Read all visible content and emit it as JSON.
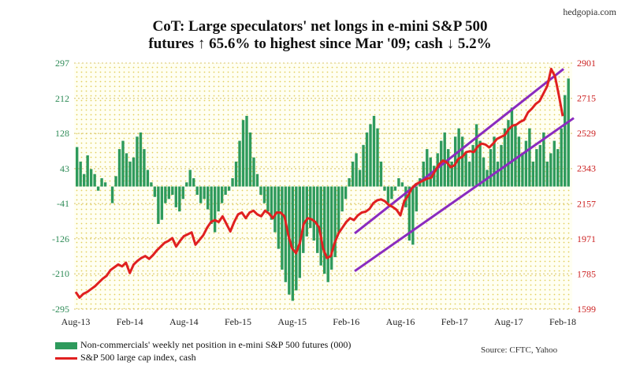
{
  "header": {
    "title_line1": "CoT: Large speculators' net longs in e-mini S&P 500",
    "title_line2": "futures ↑ 65.6% to highest since Mar '09; cash ↓ 5.2%",
    "watermark": "hedgopia.com"
  },
  "legend": {
    "bars_label": "Non-commercials' weekly net position in e-mini S&P 500 futures (000)",
    "line_label": "S&P 500 large cap index, cash"
  },
  "source": "Source: CFTC, Yahoo",
  "colors": {
    "bars": "#2e9a5c",
    "line": "#e02020",
    "channel": "#8a2bbf",
    "left_axis": "#2e8b57",
    "right_axis": "#cc2222",
    "plot_bg": "#fffff0",
    "grid_dots": "#e6d46a"
  },
  "chart_data": {
    "type": "bar+line",
    "x_tick_labels": [
      "Aug-13",
      "Feb-14",
      "Aug-14",
      "Feb-15",
      "Aug-15",
      "Feb-16",
      "Aug-16",
      "Feb-17",
      "Aug-17",
      "Feb-18"
    ],
    "x_range": [
      "2013-08",
      "2018-02"
    ],
    "left_axis": {
      "ticks": [
        297,
        212,
        128,
        43,
        -41,
        -126,
        -210,
        -295
      ],
      "range": [
        -295,
        297
      ],
      "label": ""
    },
    "right_axis": {
      "ticks": [
        2901,
        2715,
        2529,
        2343,
        2157,
        1971,
        1785,
        1599
      ],
      "range": [
        1599,
        2901
      ],
      "label": ""
    },
    "series": [
      {
        "name": "Non-commercials' weekly net position in e-mini S&P 500 futures (000)",
        "kind": "bar",
        "axis": "left",
        "x_start": "2013-08",
        "x_end": "2018-02",
        "values": [
          95,
          60,
          30,
          75,
          42,
          30,
          -10,
          20,
          10,
          0,
          -40,
          25,
          90,
          110,
          80,
          60,
          70,
          120,
          130,
          90,
          40,
          10,
          -25,
          -90,
          -80,
          -40,
          -30,
          -20,
          -50,
          -60,
          -30,
          10,
          40,
          20,
          -20,
          -40,
          -30,
          -55,
          -90,
          -110,
          -60,
          -40,
          -20,
          -10,
          20,
          60,
          110,
          160,
          170,
          130,
          70,
          30,
          -20,
          -40,
          -60,
          -80,
          -110,
          -150,
          -200,
          -230,
          -260,
          -275,
          -250,
          -220,
          -160,
          -120,
          -100,
          -130,
          -160,
          -190,
          -210,
          -230,
          -200,
          -170,
          -110,
          -60,
          -30,
          20,
          60,
          80,
          40,
          100,
          130,
          150,
          170,
          140,
          60,
          -10,
          -40,
          -30,
          -10,
          20,
          10,
          -50,
          -130,
          -140,
          -60,
          20,
          60,
          90,
          70,
          50,
          80,
          110,
          130,
          90,
          60,
          120,
          140,
          120,
          80,
          60,
          100,
          150,
          110,
          70,
          40,
          90,
          120,
          60,
          100,
          140,
          160,
          190,
          150,
          120,
          80,
          110,
          140,
          60,
          90,
          100,
          130,
          60,
          80,
          110,
          90,
          140,
          220,
          260
        ]
      },
      {
        "name": "S&P 500 large cap index, cash",
        "kind": "line",
        "axis": "right",
        "x_start": "2013-08",
        "x_end": "2018-02",
        "values": [
          1690,
          1660,
          1680,
          1690,
          1705,
          1720,
          1740,
          1760,
          1775,
          1805,
          1820,
          1835,
          1825,
          1845,
          1790,
          1835,
          1855,
          1870,
          1880,
          1865,
          1885,
          1910,
          1930,
          1950,
          1960,
          1975,
          1930,
          1960,
          1985,
          1995,
          2005,
          1940,
          1965,
          1990,
          2030,
          2060,
          2070,
          2060,
          2090,
          2050,
          2010,
          2060,
          2100,
          2110,
          2080,
          2110,
          2120,
          2100,
          2090,
          2120,
          2105,
          2080,
          2110,
          2110,
          2090,
          1990,
          1920,
          1895,
          1950,
          2050,
          2080,
          2075,
          2060,
          2030,
          1920,
          1870,
          1880,
          1950,
          2000,
          2030,
          2060,
          2080,
          2070,
          2095,
          2110,
          2115,
          2130,
          2160,
          2175,
          2180,
          2170,
          2150,
          2140,
          2125,
          2095,
          2170,
          2200,
          2240,
          2260,
          2270,
          2280,
          2290,
          2295,
          2330,
          2365,
          2385,
          2375,
          2350,
          2360,
          2395,
          2405,
          2430,
          2435,
          2430,
          2460,
          2475,
          2470,
          2455,
          2475,
          2500,
          2510,
          2520,
          2550,
          2570,
          2575,
          2590,
          2600,
          2640,
          2660,
          2685,
          2700,
          2740,
          2780,
          2870,
          2830,
          2730,
          2620
        ]
      }
    ],
    "annotations": [
      "upward-sloping price channel (two parallel lines) from Feb-16 to Feb-18"
    ],
    "grid": true,
    "legend_position": "bottom-left"
  }
}
